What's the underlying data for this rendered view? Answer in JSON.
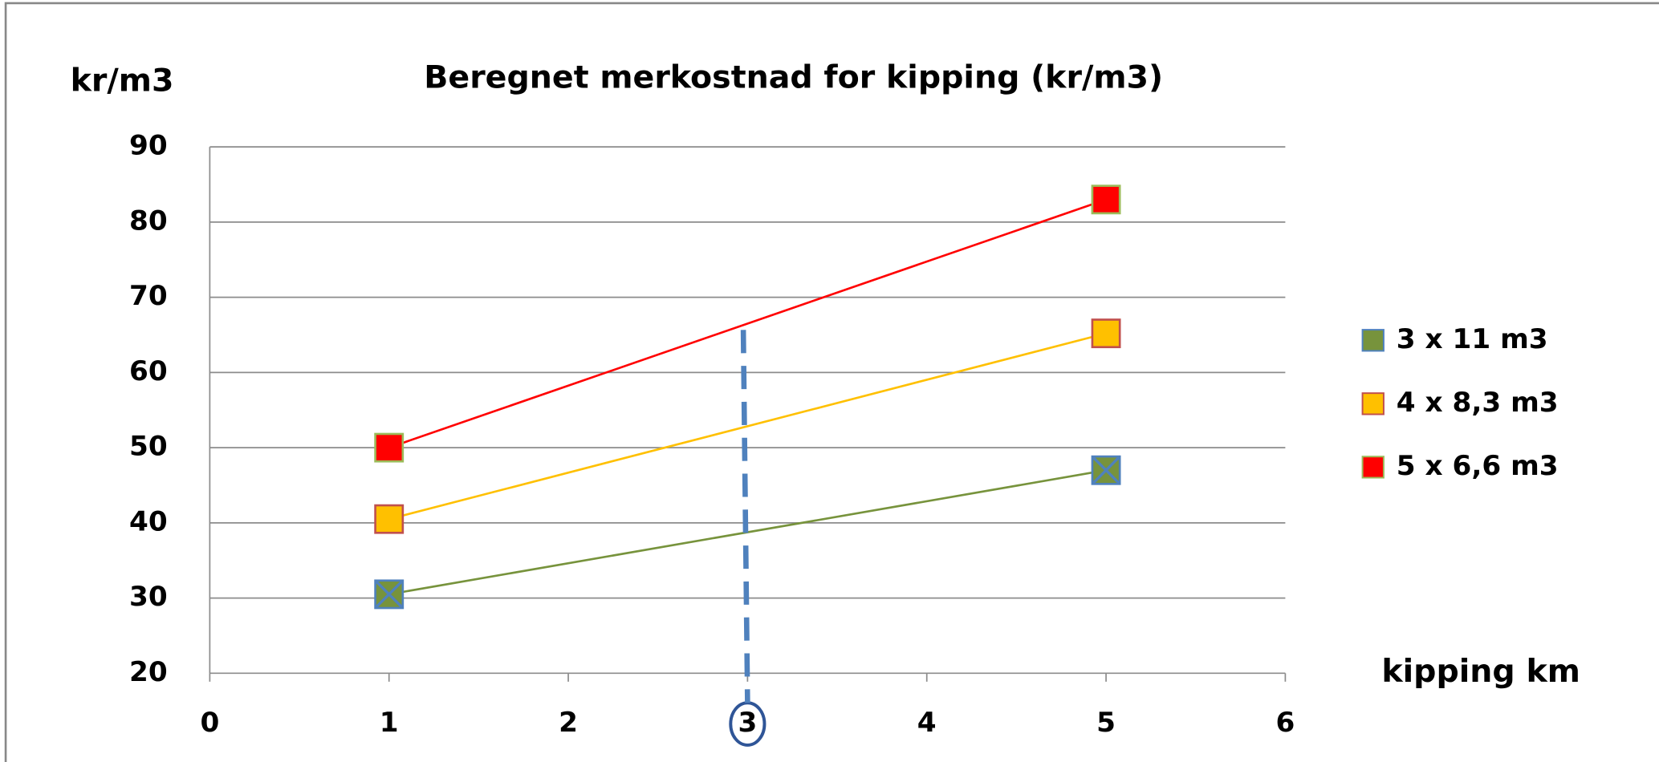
{
  "chart_data": {
    "type": "line",
    "title": "Beregnet merkostnad for kipping (kr/m3)",
    "y_label": "kr/m3",
    "x_label": "kipping km",
    "series": [
      {
        "name": "3 x 11 m3",
        "color": "#77933c",
        "x": [
          1,
          5
        ],
        "values": [
          30.5,
          47
        ]
      },
      {
        "name": "4 x 8,3 m3",
        "color": "#ffc000",
        "x": [
          1,
          5
        ],
        "values": [
          40.5,
          65.2
        ]
      },
      {
        "name": "5 x 6,6 m3",
        "color": "#ff0000",
        "x": [
          1,
          5
        ],
        "values": [
          50,
          83
        ]
      }
    ],
    "xlim": [
      0,
      6
    ],
    "xticks": [
      0,
      1,
      2,
      3,
      4,
      5,
      6
    ],
    "ylim": [
      20,
      90
    ],
    "yticks": [
      20,
      30,
      40,
      50,
      60,
      70,
      80,
      90
    ],
    "grid": true,
    "legend": "right",
    "vline_x": 3
  }
}
